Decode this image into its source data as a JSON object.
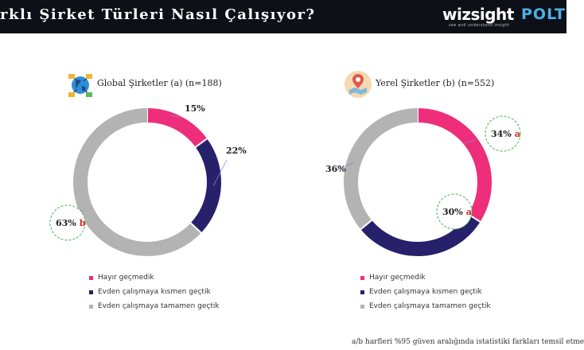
{
  "header": {
    "title": "rklı Şirket Türleri Nasıl Çalışıyor?",
    "logo_wizsight": "wizsight",
    "logo_wizsight_tagline": "see and understand insight",
    "logo_polt": "POLT"
  },
  "colors": {
    "hayir": "#ee2e7a",
    "kismen": "#27206a",
    "tamamen": "#b3b3b3",
    "significance_letter": "#d9262a",
    "significance_circle": "#3db84a"
  },
  "chart_data": [
    {
      "type": "pie",
      "donut": true,
      "title": "Global Şirketler (a) (n=188)",
      "icon": "globe-network-icon",
      "categories": [
        "Hayır geçmedik",
        "Evden çalışmaya kısmen geçtik",
        "Evden çalışmaya tamamen geçtik"
      ],
      "values": [
        15,
        22,
        63
      ],
      "labels": [
        "15%",
        "22%",
        "63%"
      ],
      "significance": [
        "",
        "",
        "b"
      ]
    },
    {
      "type": "pie",
      "donut": true,
      "title": "Yerel Şirketler (b) (n=552)",
      "icon": "map-pin-icon",
      "categories": [
        "Hayır geçmedik",
        "Evden çalışmaya kısmen geçtik",
        "Evden çalışmaya tamamen geçtik"
      ],
      "values": [
        34,
        30,
        36
      ],
      "labels": [
        "34%",
        "30%",
        "36%"
      ],
      "significance": [
        "a",
        "a",
        ""
      ]
    }
  ],
  "footnote": "a/b harfleri %95 güven aralığında istatistiki farkları temsil etme"
}
